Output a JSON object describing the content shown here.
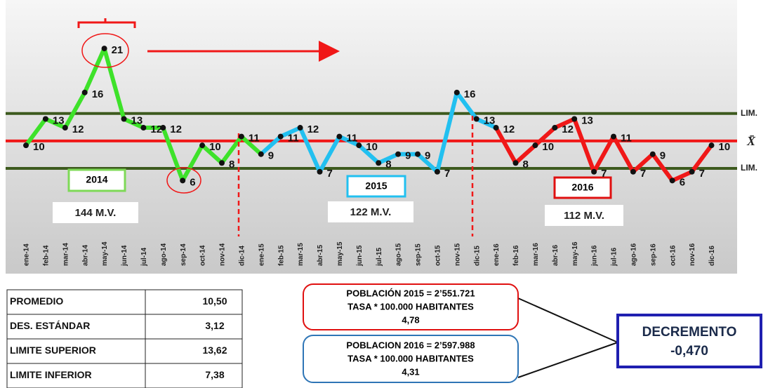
{
  "chart_data": {
    "type": "line",
    "categories": [
      "ene-14",
      "feb-14",
      "mar-14",
      "abr-14",
      "may-14",
      "jun-14",
      "jul-14",
      "ago-14",
      "sep-14",
      "oct-14",
      "nov-14",
      "dic-14",
      "ene-15",
      "feb-15",
      "mar-15",
      "abr-15",
      "may-15",
      "jun-15",
      "jul-15",
      "ago-15",
      "sep-15",
      "oct-15",
      "nov-15",
      "dic-15",
      "ene-16",
      "feb-16",
      "mar-16",
      "abr-16",
      "may-16",
      "jun-16",
      "jul-16",
      "ago-16",
      "sep-16",
      "oct-16",
      "nov-16",
      "dic-16"
    ],
    "series": [
      {
        "name": "2014",
        "color": "#3ee22a",
        "values": [
          10,
          13,
          12,
          16,
          21,
          13,
          12,
          12,
          6,
          10,
          8,
          11,
          null,
          null,
          null,
          null,
          null,
          null,
          null,
          null,
          null,
          null,
          null,
          null,
          null,
          null,
          null,
          null,
          null,
          null,
          null,
          null,
          null,
          null,
          null,
          null
        ]
      },
      {
        "name": "2015",
        "color": "#22c0f0",
        "values": [
          null,
          null,
          null,
          null,
          null,
          null,
          null,
          null,
          null,
          null,
          null,
          null,
          9,
          11,
          12,
          7,
          11,
          10,
          8,
          9,
          9,
          7,
          16,
          13,
          null,
          null,
          null,
          null,
          null,
          null,
          null,
          null,
          null,
          null,
          null,
          null
        ]
      },
      {
        "name": "2016",
        "color": "#f01818",
        "values": [
          null,
          null,
          null,
          null,
          null,
          null,
          null,
          null,
          null,
          null,
          null,
          null,
          null,
          null,
          null,
          null,
          null,
          null,
          null,
          null,
          null,
          null,
          null,
          null,
          12,
          8,
          10,
          12,
          13,
          7,
          11,
          7,
          9,
          6,
          7,
          10
        ]
      }
    ],
    "ylim": [
      3,
      23
    ],
    "reference_lines": [
      {
        "label": "LIM.",
        "value": 13.62,
        "color": "#3d5a1e"
      },
      {
        "label": "X̄",
        "value": 10.5,
        "color": "#f01818"
      },
      {
        "label": "LIM.",
        "value": 7.38,
        "color": "#3d5a1e"
      }
    ],
    "totals": [
      "144 M.V.",
      "122 M.V.",
      "112 M.V."
    ]
  },
  "table": {
    "rows": [
      [
        "PROMEDIO",
        "10,50"
      ],
      [
        "DES. ESTÁNDAR",
        "3,12"
      ],
      [
        "LIMITE SUPERIOR",
        "13,62"
      ],
      [
        "LIMITE INFERIOR",
        "7,38"
      ]
    ]
  },
  "population_2015": [
    "POBLACIÓN 2015 = 2’551.721",
    "TASA * 100.000 HABITANTES",
    "4,78"
  ],
  "population_2016": [
    "POBLACION 2016 = 2’597.988",
    "TASA * 100.000 HABITANTES",
    "4,31"
  ],
  "decrement": {
    "title": "DECREMENTO",
    "value": "-0,470"
  }
}
